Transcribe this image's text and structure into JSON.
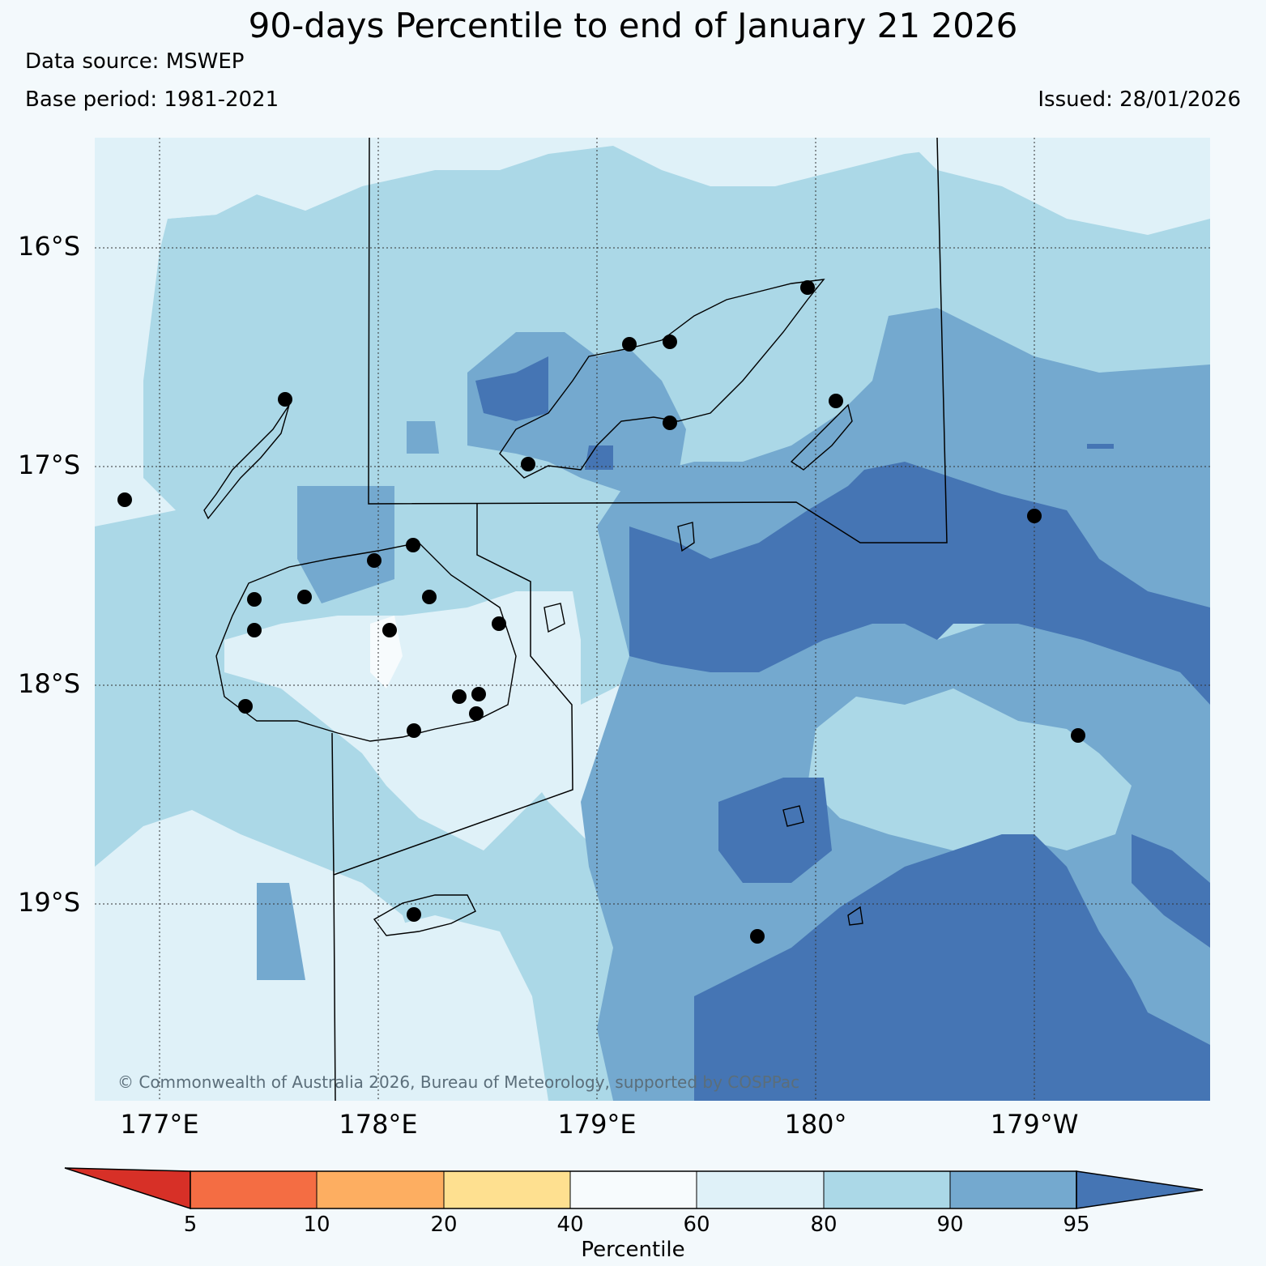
{
  "title": "90-days Percentile to end of January 21 2026",
  "data_source": "Data source: MSWEP",
  "base_period": "Base period: 1981-2021",
  "issued": "Issued: 28/01/2026",
  "copyright": "© Commonwealth of Australia 2026, Bureau of Meteorology, supported by COSPPac",
  "lat_labels": [
    "16°S",
    "17°S",
    "18°S",
    "19°S"
  ],
  "lon_labels": [
    "177°E",
    "178°E",
    "179°E",
    "180°",
    "179°W"
  ],
  "colorbar": {
    "label": "Percentile",
    "ticks": [
      "5",
      "10",
      "20",
      "40",
      "60",
      "80",
      "90",
      "95"
    ],
    "colors": {
      "lt5": "#d73027",
      "5-10": "#f46d43",
      "10-20": "#fdae61",
      "20-40": "#fee090",
      "40-60": "#f7fbfd",
      "60-80": "#dff1f8",
      "80-90": "#abd8e7",
      "90-95": "#74a9cf",
      "gt95": "#4575b4"
    }
  }
}
